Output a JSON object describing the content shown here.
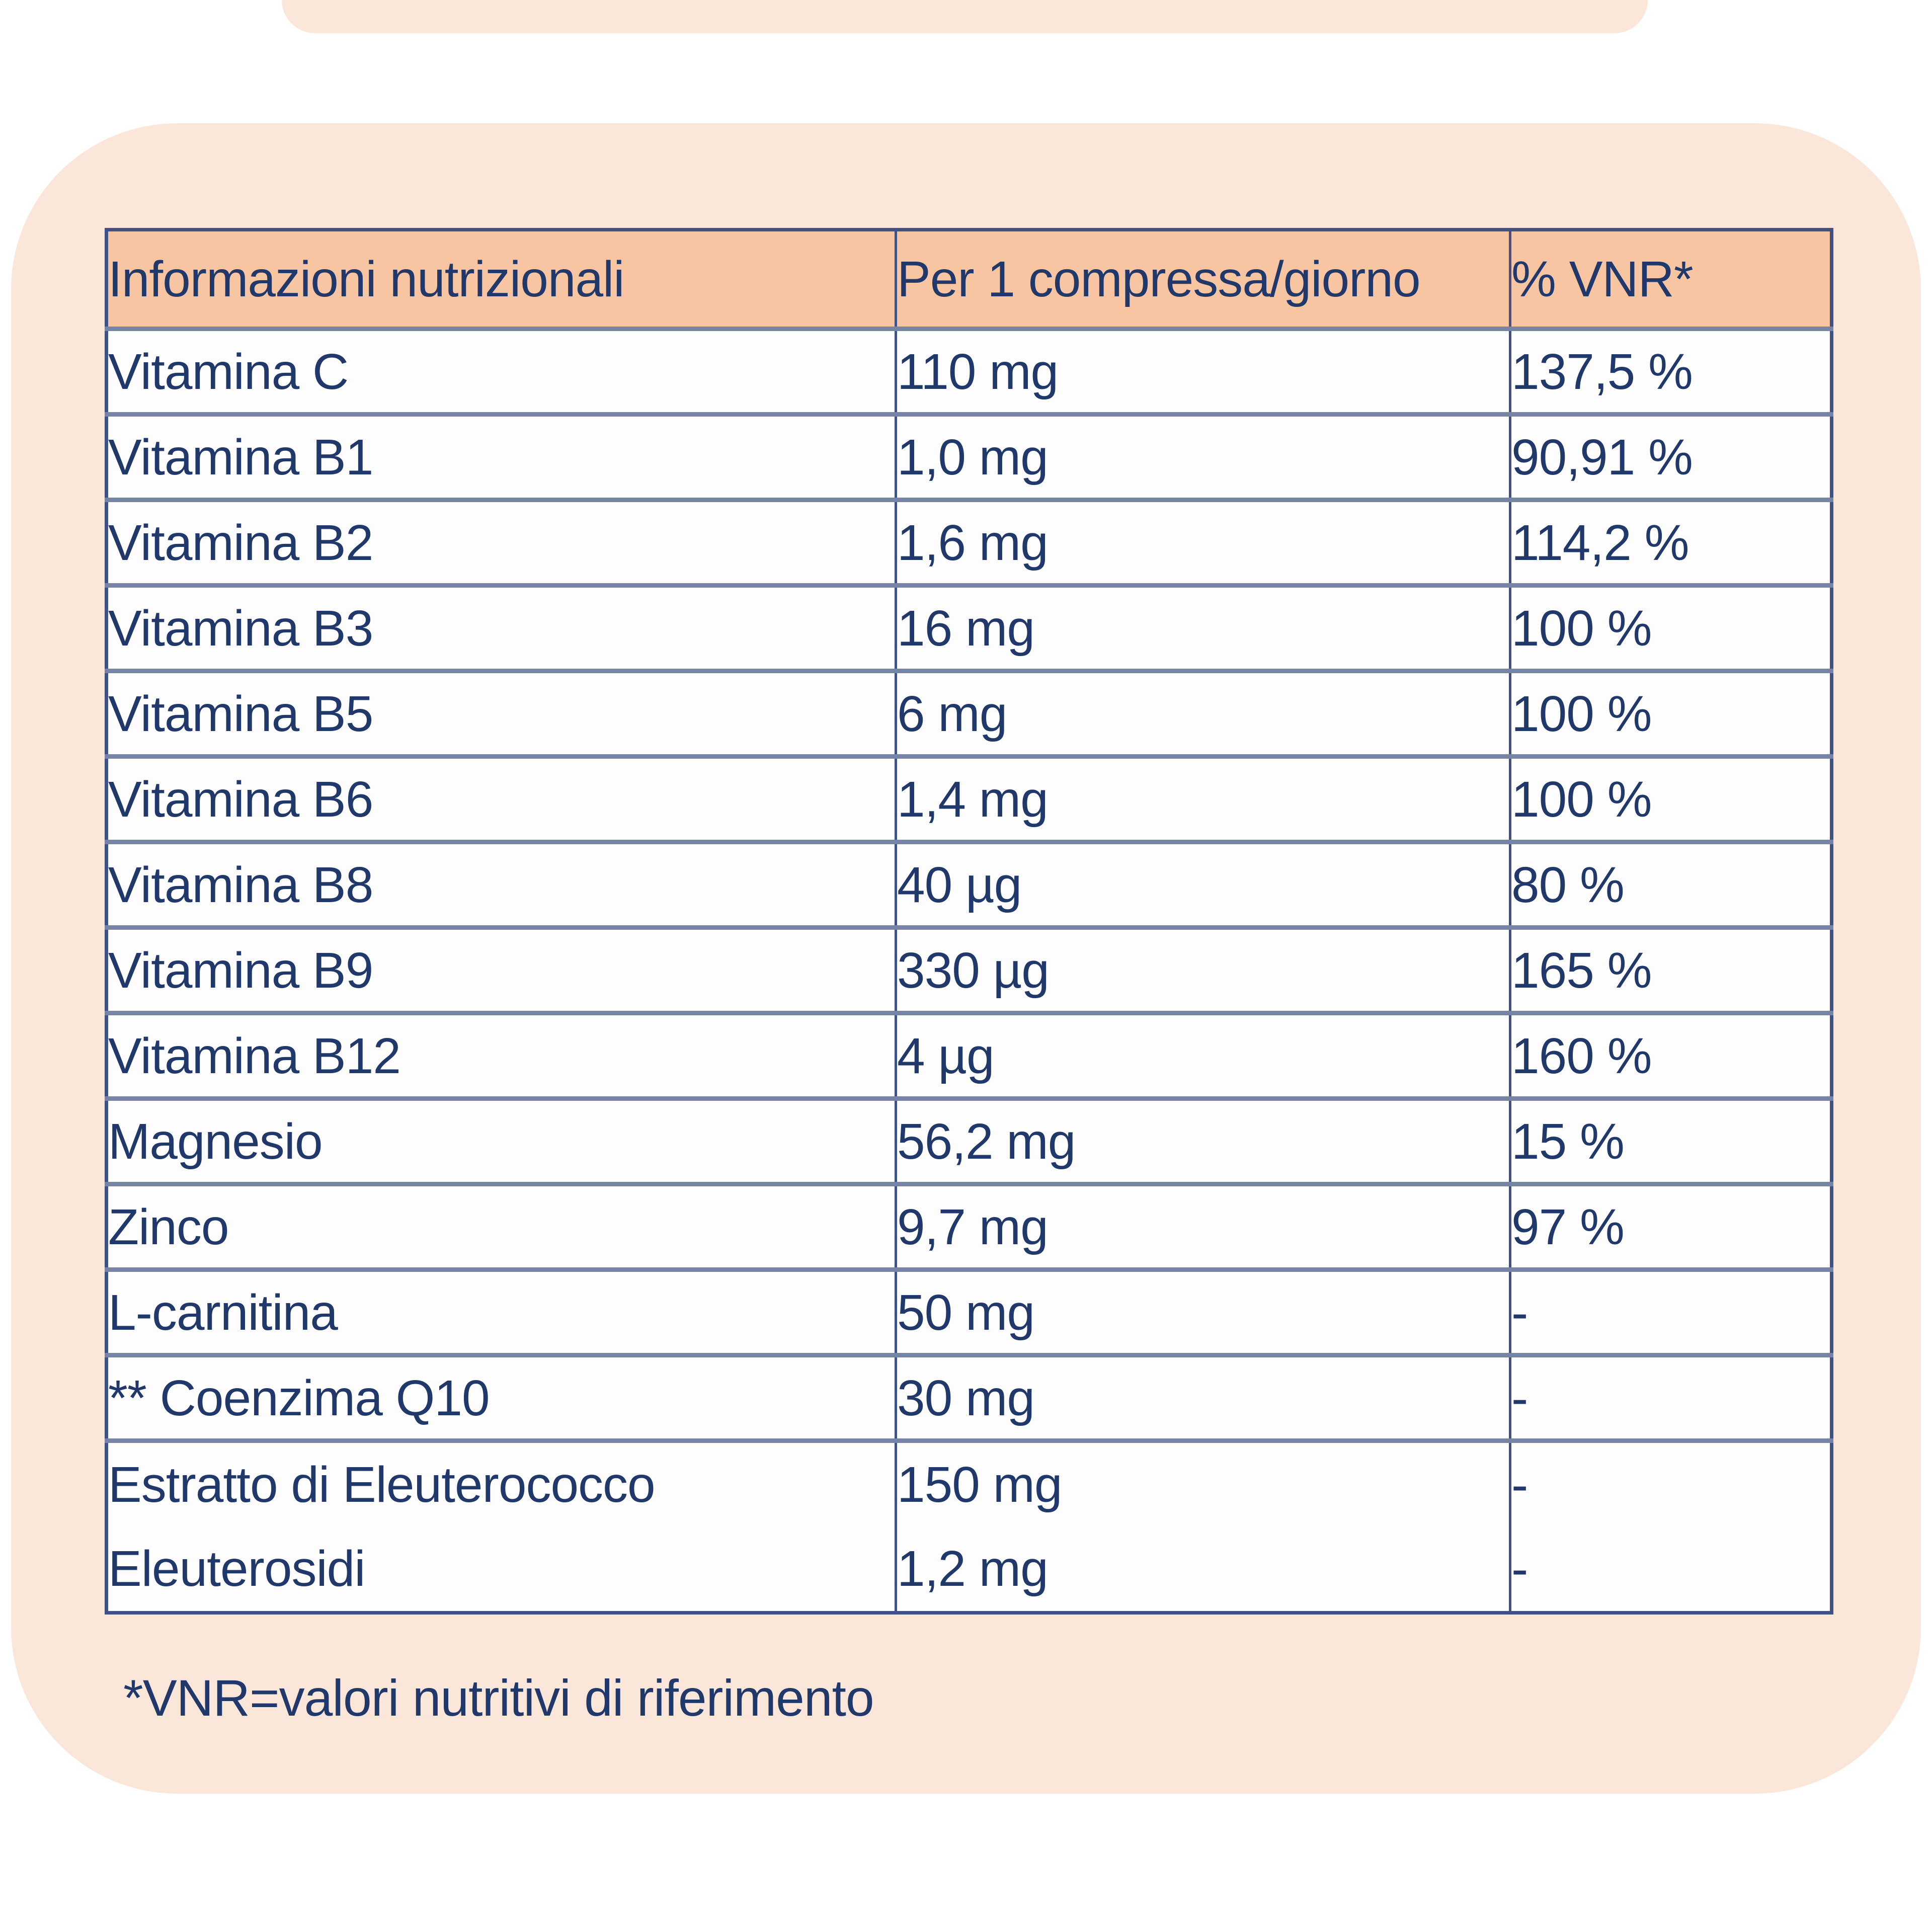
{
  "colors": {
    "card_background": "#fbe6da",
    "header_background": "#f8c5a2",
    "text": "#21386b",
    "row_line": "#7684a8",
    "table_border": "#3f5286",
    "table_background": "#fdfdfe"
  },
  "table": {
    "header": {
      "col1": "Informazioni nutrizionali",
      "col2": "Per 1 compressa/giorno",
      "col3": "% VNR*"
    },
    "rows": [
      {
        "name": "Vitamina C",
        "amount": "110 mg",
        "vnr": "137,5 %"
      },
      {
        "name": "Vitamina B1",
        "amount": "1,0 mg",
        "vnr": "90,91 %"
      },
      {
        "name": "Vitamina B2",
        "amount": "1,6 mg",
        "vnr": "114,2 %"
      },
      {
        "name": "Vitamina B3",
        "amount": "16 mg",
        "vnr": "100 %"
      },
      {
        "name": "Vitamina B5",
        "amount": "6 mg",
        "vnr": "100 %"
      },
      {
        "name": "Vitamina B6",
        "amount": "1,4 mg",
        "vnr": "100 %"
      },
      {
        "name": "Vitamina B8",
        "amount": "40 µg",
        "vnr": "80 %"
      },
      {
        "name": "Vitamina B9",
        "amount": "330 µg",
        "vnr": "165 %"
      },
      {
        "name": "Vitamina B12",
        "amount": "4 µg",
        "vnr": "160 %"
      },
      {
        "name": "Magnesio",
        "amount": "56,2 mg",
        "vnr": "15 %"
      },
      {
        "name": "Zinco",
        "amount": "9,7 mg",
        "vnr": "97 %"
      },
      {
        "name": "L-carnitina",
        "amount": "50 mg",
        "vnr": "-"
      },
      {
        "name": "** Coenzima Q10",
        "amount": "30 mg",
        "vnr": "-"
      }
    ],
    "last_row": {
      "name_line1": "Estratto di Eleuterococco",
      "amount_line1": "150 mg",
      "vnr_line1": "-",
      "name_line2": "Eleuterosidi",
      "amount_line2": "1,2 mg",
      "vnr_line2": "-"
    }
  },
  "footnote": "*VNR=valori nutritivi di riferimento"
}
